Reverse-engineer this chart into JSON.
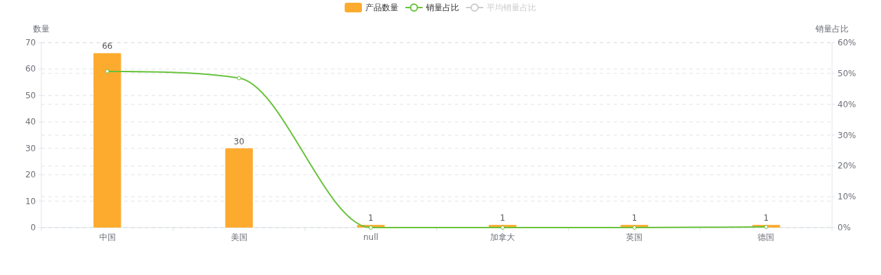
{
  "chart_data": {
    "type": "bar",
    "ylabel": "数量",
    "y2label": "销量占比",
    "categories": [
      "中国",
      "美国",
      "null",
      "加拿大",
      "英国",
      "德国"
    ],
    "series": [
      {
        "name": "产品数量",
        "color": "#fdab2e",
        "values": [
          66,
          30,
          1,
          1,
          1,
          1
        ],
        "value_labels": [
          "66",
          "30",
          "1",
          "1",
          "1",
          "1"
        ]
      },
      {
        "name": "销量占比",
        "type": "line",
        "axis": "y2",
        "color": "#67c23a",
        "marker": "circle",
        "values": [
          50.7,
          48.5,
          0,
          0,
          0,
          0.2
        ]
      },
      {
        "name": "平均销量占比",
        "type": "line",
        "axis": "y2",
        "color": "#cccccc",
        "marker": "circle",
        "values": [
          null,
          null,
          null,
          null,
          null,
          null
        ]
      }
    ],
    "ylim": [
      0,
      70
    ],
    "yticks": [
      0,
      10,
      20,
      30,
      40,
      50,
      60,
      70
    ],
    "y2lim": [
      0,
      60
    ],
    "y2ticks": [
      {
        "value": 0,
        "label": "0%"
      },
      {
        "value": 10,
        "label": "10%"
      },
      {
        "value": 20,
        "label": "20%"
      },
      {
        "value": 30,
        "label": "30%"
      },
      {
        "value": 40,
        "label": "40%"
      },
      {
        "value": 50,
        "label": "50%"
      },
      {
        "value": 60,
        "label": "60%"
      }
    ],
    "grid": true,
    "legend": "top"
  }
}
